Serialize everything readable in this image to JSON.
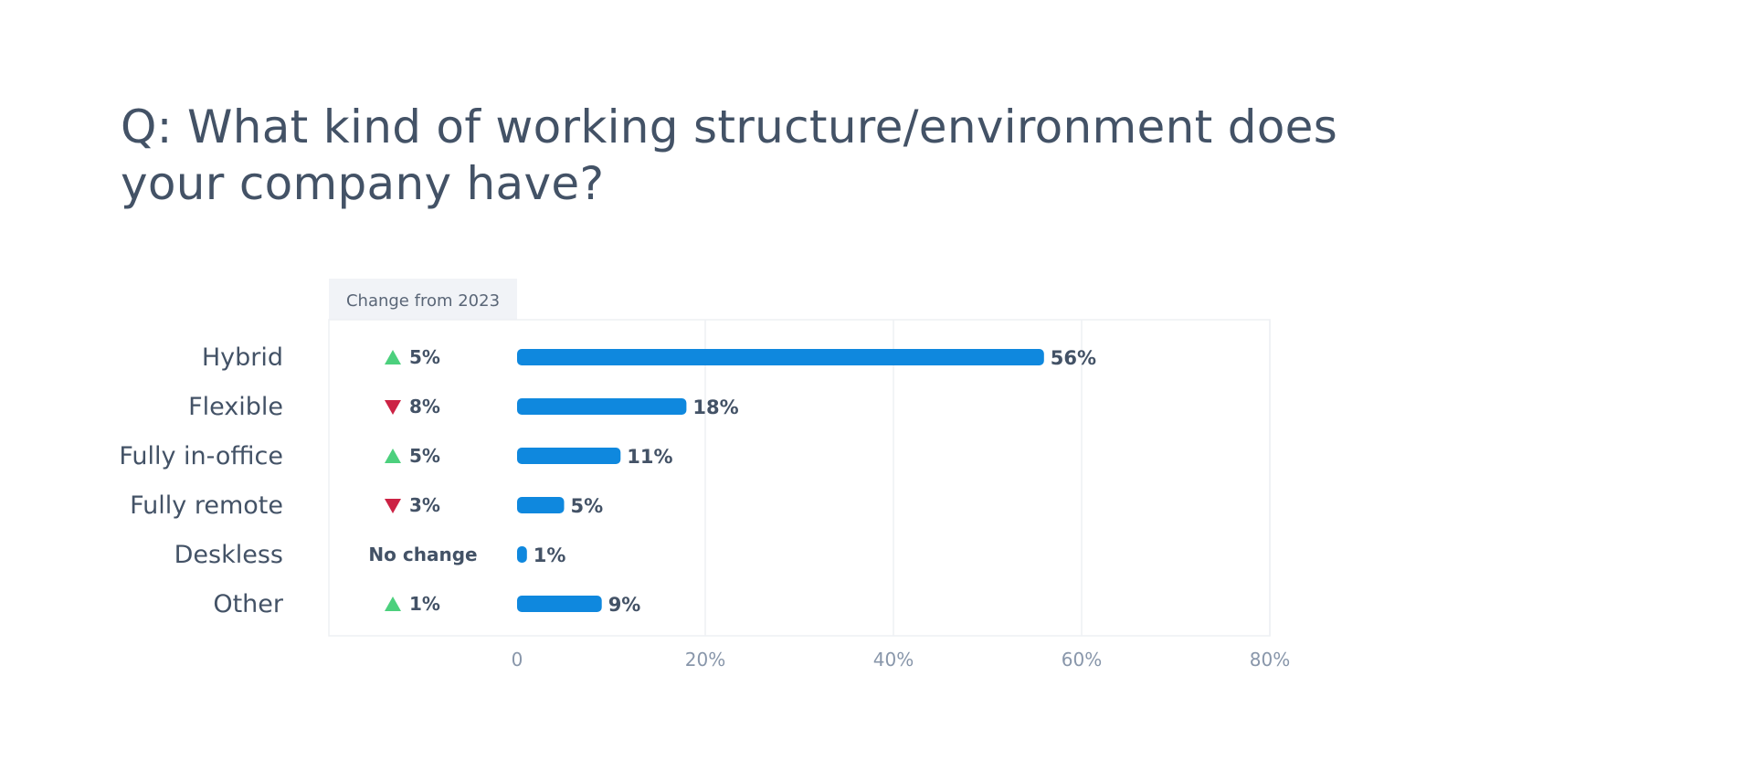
{
  "question": "Q:  What kind of working structure/environment does your company have?",
  "chart_data": {
    "type": "bar",
    "orientation": "horizontal",
    "categories": [
      "Hybrid",
      "Flexible",
      "Fully in-office",
      "Fully remote",
      "Deskless",
      "Other"
    ],
    "values": [
      56,
      18,
      11,
      5,
      1,
      9
    ],
    "value_labels": [
      "56%",
      "18%",
      "11%",
      "5%",
      "1%",
      "9%"
    ],
    "xlim": [
      0,
      80
    ],
    "xticks": [
      0,
      20,
      40,
      60,
      80
    ],
    "xtick_labels": [
      "0",
      "20%",
      "40%",
      "60%",
      "80%"
    ],
    "grid": true,
    "bar_color": "#0f88de",
    "change_column": {
      "header": "Change from 2023",
      "entries": [
        {
          "direction": "up",
          "label": "5%"
        },
        {
          "direction": "down",
          "label": "8%"
        },
        {
          "direction": "up",
          "label": "5%"
        },
        {
          "direction": "down",
          "label": "3%"
        },
        {
          "direction": "none",
          "label": "No change"
        },
        {
          "direction": "up",
          "label": "1%"
        }
      ],
      "up_color": "#4cd07d",
      "down_color": "#cc2244"
    }
  }
}
